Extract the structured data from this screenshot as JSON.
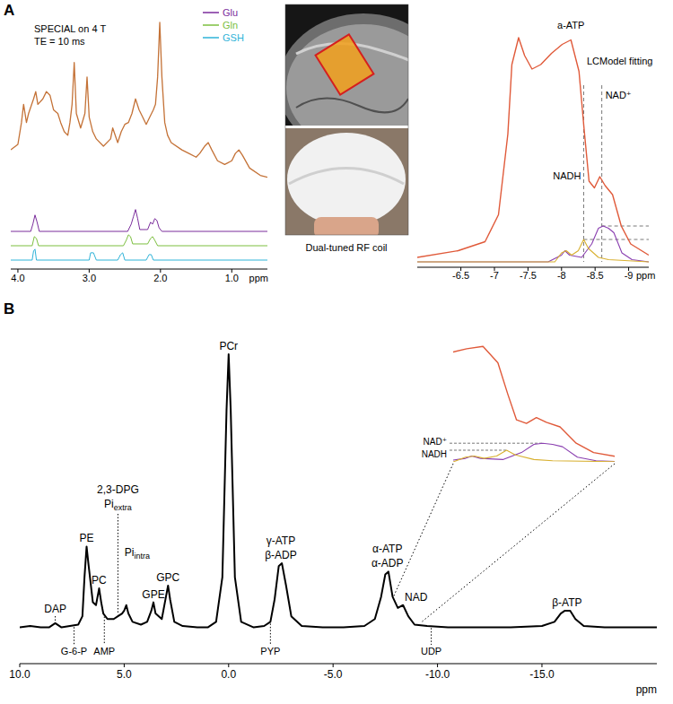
{
  "panel_labels": [
    "A",
    "B"
  ],
  "image_caption": "Dual-tuned RF coil",
  "chart_data": [
    {
      "type": "line",
      "title": "SPECIAL on 4 T",
      "subtitle": "TE = 10 ms",
      "xlabel": "ppm",
      "xlim": [
        4.1,
        0.5
      ],
      "ylim": [
        0,
        100
      ],
      "xticks": [
        {
          "value": 4,
          "label": "4.0"
        },
        {
          "value": 3,
          "label": "3.0"
        },
        {
          "value": 2,
          "label": "2.0"
        },
        {
          "value": 1,
          "label": "1.0"
        }
      ],
      "tick_labels": "x",
      "legend": "top-right",
      "series": [
        {
          "color": "#c47237",
          "x": [
            4.1,
            4,
            3.95,
            3.92,
            3.88,
            3.85,
            3.78,
            3.75,
            3.72,
            3.65,
            3.6,
            3.55,
            3.5,
            3.44,
            3.4,
            3.35,
            3.3,
            3.27,
            3.24,
            3.21,
            3.18,
            3.12,
            3.06,
            3.03,
            3,
            2.95,
            2.9,
            2.8,
            2.7,
            2.67,
            2.6,
            2.55,
            2.5,
            2.45,
            2.4,
            2.35,
            2.3,
            2.25,
            2.2,
            2.15,
            2.1,
            2.07,
            2.04,
            2.01,
            1.98,
            1.94,
            1.9,
            1.85,
            1.7,
            1.6,
            1.5,
            1.45,
            1.38,
            1.33,
            1.28,
            1.2,
            1.1,
            1,
            0.95,
            0.9,
            0.85,
            0.75,
            0.6,
            0.5
          ],
          "values": [
            30,
            33,
            45,
            55,
            45,
            50,
            58,
            62,
            55,
            58,
            62,
            60,
            52,
            50,
            45,
            40,
            38,
            45,
            55,
            78,
            50,
            42,
            50,
            70,
            48,
            40,
            36,
            32,
            36,
            42,
            34,
            40,
            44,
            45,
            50,
            58,
            52,
            48,
            44,
            48,
            52,
            55,
            70,
            100,
            70,
            45,
            38,
            34,
            30,
            28,
            26,
            28,
            32,
            34,
            30,
            24,
            22,
            24,
            28,
            30,
            27,
            20,
            16,
            15
          ]
        },
        {
          "name": "Glu",
          "color": "#7b2d9c",
          "x": [
            4.1,
            3.82,
            3.79,
            3.76,
            3.73,
            3.7,
            2.46,
            2.41,
            2.38,
            2.35,
            2.32,
            2.29,
            2.18,
            2.14,
            2.11,
            2.08,
            2.05,
            2.02,
            1.98,
            0.5
          ],
          "values": [
            0,
            0,
            4,
            9,
            5,
            0,
            0,
            4,
            8,
            12,
            7,
            1,
            1,
            5,
            4,
            7,
            6,
            2,
            0,
            0
          ]
        },
        {
          "name": "Gln",
          "color": "#7cbf3f",
          "x": [
            4.1,
            3.8,
            3.77,
            3.74,
            3.71,
            2.52,
            2.48,
            2.45,
            2.42,
            2.39,
            2.18,
            2.14,
            2.11,
            2.08,
            2.04,
            0.5
          ],
          "values": [
            0,
            0,
            5,
            4,
            0,
            0,
            3,
            6,
            5,
            1,
            1,
            4,
            5,
            3,
            0,
            0
          ]
        },
        {
          "name": "GSH",
          "color": "#2fb3d8",
          "x": [
            4.1,
            3.8,
            3.78,
            3.76,
            3.74,
            3.0,
            2.98,
            2.94,
            2.9,
            2.6,
            2.56,
            2.53,
            2.5,
            2.2,
            2.16,
            2.13,
            2.1,
            0.5
          ],
          "values": [
            0,
            0,
            5,
            6,
            0,
            0,
            4,
            4,
            0,
            0,
            3,
            4,
            0,
            0,
            3,
            3,
            0,
            0
          ]
        }
      ]
    },
    {
      "type": "line",
      "title": "LCModel fitting",
      "xlabel": "ppm",
      "xlim": [
        -5.85,
        -9.3
      ],
      "ylim": [
        0,
        100
      ],
      "xticks": [
        -6.5,
        -7,
        -7.5,
        -8,
        -8.5,
        -9
      ],
      "tick_labels": "x",
      "series": [
        {
          "color": "#e05a3a",
          "x": [
            -5.85,
            -6.46,
            -6.86,
            -7.06,
            -7.2,
            -7.26,
            -7.36,
            -7.45,
            -7.56,
            -7.69,
            -7.85,
            -8.01,
            -8.14,
            -8.26,
            -8.34,
            -8.41,
            -8.49,
            -8.57,
            -8.65,
            -8.76,
            -8.89,
            -9.03,
            -9.3
          ],
          "values": [
            2,
            5,
            9,
            21,
            57,
            88,
            100,
            92,
            86,
            88,
            93,
            97,
            99,
            85,
            58,
            36,
            33,
            38,
            34,
            30,
            16,
            8,
            3
          ]
        },
        {
          "color": "#8a3fb0",
          "x": [
            -5.85,
            -7.8,
            -8.0,
            -8.05,
            -8.12,
            -8.3,
            -8.45,
            -8.55,
            -8.62,
            -8.7,
            -8.78,
            -8.9,
            -9.05,
            -9.3
          ],
          "values": [
            0,
            0,
            3,
            5,
            3,
            2,
            8,
            15,
            16,
            15,
            13,
            4,
            1,
            0
          ]
        },
        {
          "color": "#d8b030",
          "x": [
            -5.85,
            -7.9,
            -8.0,
            -8.07,
            -8.15,
            -8.25,
            -8.33,
            -8.4,
            -8.55,
            -8.7,
            -9.3
          ],
          "values": [
            0,
            0,
            4,
            5,
            3,
            5,
            10,
            6,
            2,
            1,
            0
          ]
        }
      ],
      "annotations": [
        {
          "text": "a-ATP",
          "x": -8.14
        },
        {
          "text": "NADH",
          "x": -8.33
        },
        {
          "text": "NAD⁺",
          "x": -8.6
        }
      ]
    },
    {
      "type": "line",
      "xlabel": "ppm",
      "xlim": [
        10,
        -20.5
      ],
      "ylim": [
        -11,
        100
      ],
      "xticks": [
        {
          "value": 10,
          "label": "10.0"
        },
        {
          "value": 5,
          "label": "5.0"
        },
        {
          "value": 0,
          "label": "0.0"
        },
        {
          "value": -5,
          "label": "-5.0"
        },
        {
          "value": -10,
          "label": "-10.0"
        },
        {
          "value": -15,
          "label": "-15.0"
        }
      ],
      "tick_labels": "x",
      "series": [
        {
          "color": "#000000",
          "x": [
            10,
            9.5,
            9,
            8.6,
            8.3,
            8,
            7.6,
            7.2,
            7,
            6.9,
            6.8,
            6.7,
            6.5,
            6.35,
            6.2,
            6.1,
            6,
            5.8,
            5.5,
            5.3,
            5.1,
            5,
            4.9,
            4.8,
            4.6,
            4.2,
            3.9,
            3.7,
            3.6,
            3.5,
            3.2,
            3,
            2.9,
            2.8,
            2.6,
            2.2,
            1.5,
            1,
            0.6,
            0.3,
            0.1,
            0,
            -0.1,
            -0.3,
            -0.6,
            -1.2,
            -1.7,
            -2,
            -2.2,
            -2.4,
            -2.55,
            -2.75,
            -3,
            -3.5,
            -4.5,
            -5.5,
            -6.5,
            -7,
            -7.3,
            -7.5,
            -7.65,
            -7.85,
            -8.1,
            -8.35,
            -8.6,
            -8.9,
            -9.5,
            -10.5,
            -12,
            -13.5,
            -15,
            -15.6,
            -15.9,
            -16.1,
            -16.35,
            -16.6,
            -17,
            -18,
            -19,
            -20.5
          ],
          "values": [
            2,
            2.5,
            2,
            2,
            3.5,
            2,
            2.5,
            3,
            6,
            20,
            31,
            24,
            11,
            10,
            16,
            11,
            7,
            5,
            5,
            6,
            7,
            8,
            10,
            7,
            4,
            3,
            4,
            8,
            11,
            7,
            5,
            13,
            17,
            12,
            4,
            2.5,
            2,
            2,
            4,
            20,
            80,
            100,
            80,
            20,
            4,
            2,
            2.5,
            4,
            12,
            24,
            25,
            17,
            6,
            2.5,
            2,
            2,
            2.5,
            5,
            13,
            21,
            22,
            13,
            9,
            10,
            6,
            3,
            2.5,
            2,
            2,
            2,
            2.5,
            4,
            7,
            8,
            8,
            5,
            2.5,
            2,
            2,
            2
          ]
        }
      ],
      "annotations": [
        {
          "x": 8.3,
          "lines": [
            {
              "text": "DAP"
            }
          ]
        },
        {
          "x": 6.8,
          "lines": [
            {
              "text": "PE"
            }
          ]
        },
        {
          "x": 6.2,
          "lines": [
            {
              "text": "PC"
            }
          ]
        },
        {
          "x": 5.3,
          "lines": [
            {
              "text": "2,3-DPG"
            },
            {
              "text": "Pi",
              "sub": "extra"
            }
          ]
        },
        {
          "x": 4.9,
          "lines": [
            {
              "text": "Pi",
              "sub": "intra"
            }
          ]
        },
        {
          "x": 3.6,
          "lines": [
            {
              "text": "GPE"
            }
          ]
        },
        {
          "x": 2.9,
          "lines": [
            {
              "text": "GPC"
            }
          ]
        },
        {
          "x": 0,
          "lines": [
            {
              "text": "PCr"
            }
          ]
        },
        {
          "x": -2.5,
          "lines": [
            {
              "text": "γ-ATP"
            },
            {
              "text": "β-ADP"
            }
          ]
        },
        {
          "x": -7.6,
          "lines": [
            {
              "text": "α-ATP"
            },
            {
              "text": "α-ADP"
            }
          ]
        },
        {
          "x": -8.3,
          "lines": [
            {
              "text": "NAD"
            }
          ]
        },
        {
          "x": -16.2,
          "lines": [
            {
              "text": "β-ATP"
            }
          ]
        }
      ],
      "annotations_below": [
        {
          "text": "G-6-P",
          "x": 7.4
        },
        {
          "text": "AMP",
          "x": 5.95
        },
        {
          "text": "PYP",
          "x": -2
        },
        {
          "text": "UDP",
          "x": -9.7
        }
      ],
      "inset": {
        "xlim": [
          -7.9,
          -9.2
        ],
        "ylim": [
          0,
          100
        ]
      }
    }
  ]
}
